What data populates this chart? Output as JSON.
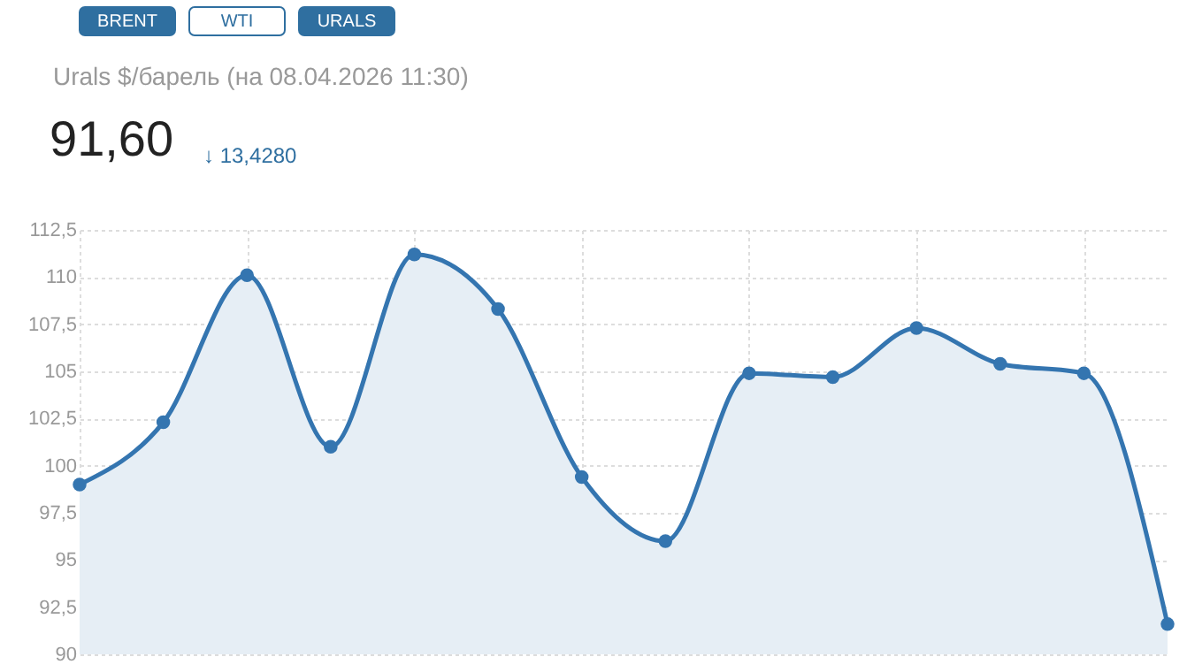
{
  "chart_data": {
    "type": "area",
    "title": "Urals $/барель (на 08.04.2026 11:30)",
    "subtitle": "91,60",
    "annotations": [
      "BRENT",
      "WTI",
      "URALS",
      "↓ 13,4280"
    ],
    "categories": [
      null,
      null,
      null,
      null,
      null,
      null,
      null,
      null,
      null,
      null,
      null,
      null,
      null,
      null
    ],
    "series": [
      {
        "color": "#3475b0",
        "values": [
          99.0,
          102.3,
          110.1,
          101.0,
          111.2,
          108.3,
          99.4,
          96.0,
          104.9,
          104.7,
          107.3,
          105.4,
          104.9,
          91.6
        ]
      }
    ],
    "ylim": [
      90,
      112.5
    ],
    "yticks": [
      {
        "value": 90,
        "label": "90"
      },
      {
        "value": 92.5,
        "label": "92,5"
      },
      {
        "value": 95,
        "label": "95"
      },
      {
        "value": 97.5,
        "label": "97,5"
      },
      {
        "value": 100,
        "label": "100"
      },
      {
        "value": 102.5,
        "label": "102,5"
      },
      {
        "value": 105,
        "label": "105"
      },
      {
        "value": 107.5,
        "label": "107,5"
      },
      {
        "value": 110,
        "label": "110"
      },
      {
        "value": 112.5,
        "label": "112,5"
      }
    ],
    "grid": true,
    "marker": "circle",
    "tick_labels": "y"
  }
}
